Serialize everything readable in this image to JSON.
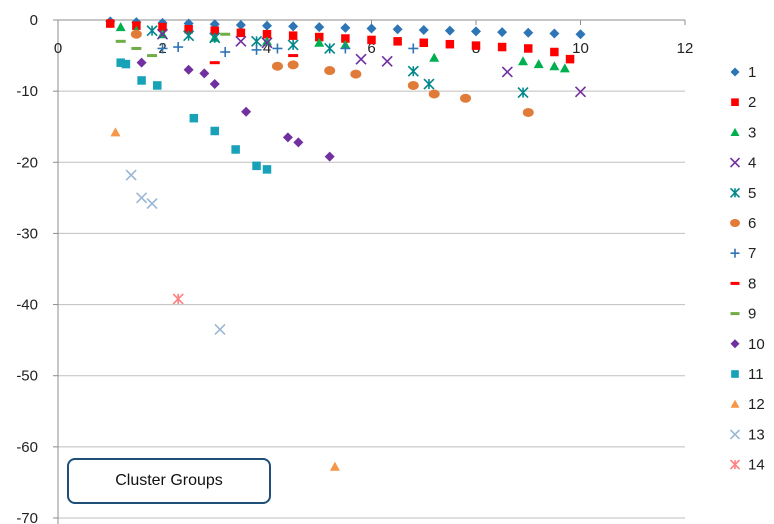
{
  "chart_data": {
    "type": "scatter",
    "title": "",
    "xlabel": "",
    "ylabel": "",
    "xlim": [
      0,
      12
    ],
    "ylim": [
      -70,
      0
    ],
    "x_ticks": [
      0,
      2,
      4,
      6,
      8,
      10,
      12
    ],
    "y_ticks": [
      0,
      -10,
      -20,
      -30,
      -40,
      -50,
      -60,
      -70
    ],
    "grid": "horizontal",
    "legend_position": "right",
    "annotation": "Cluster Groups",
    "series": [
      {
        "name": "1",
        "marker": "diamond",
        "color": "#2e75b6",
        "points": [
          [
            1.0,
            -0.2
          ],
          [
            1.5,
            -0.3
          ],
          [
            2.0,
            -0.4
          ],
          [
            2.5,
            -0.5
          ],
          [
            3.0,
            -0.6
          ],
          [
            3.5,
            -0.7
          ],
          [
            4.0,
            -0.8
          ],
          [
            4.5,
            -0.9
          ],
          [
            5.0,
            -1.0
          ],
          [
            5.5,
            -1.1
          ],
          [
            6.0,
            -1.2
          ],
          [
            6.5,
            -1.3
          ],
          [
            7.0,
            -1.4
          ],
          [
            7.5,
            -1.5
          ],
          [
            8.0,
            -1.6
          ],
          [
            8.5,
            -1.7
          ],
          [
            9.0,
            -1.8
          ],
          [
            9.5,
            -1.9
          ],
          [
            10.0,
            -2.0
          ]
        ]
      },
      {
        "name": "2",
        "marker": "square",
        "color": "#ff0000",
        "points": [
          [
            1.0,
            -0.5
          ],
          [
            1.5,
            -0.8
          ],
          [
            2.0,
            -1.0
          ],
          [
            2.5,
            -1.3
          ],
          [
            3.0,
            -1.5
          ],
          [
            3.5,
            -1.8
          ],
          [
            4.0,
            -2.0
          ],
          [
            4.5,
            -2.2
          ],
          [
            5.0,
            -2.4
          ],
          [
            5.5,
            -2.6
          ],
          [
            6.0,
            -2.8
          ],
          [
            6.5,
            -3.0
          ],
          [
            7.0,
            -3.2
          ],
          [
            7.5,
            -3.4
          ],
          [
            8.0,
            -3.6
          ],
          [
            8.5,
            -3.8
          ],
          [
            9.0,
            -4.0
          ],
          [
            9.5,
            -4.5
          ],
          [
            9.8,
            -5.5
          ]
        ]
      },
      {
        "name": "3",
        "marker": "triangle",
        "color": "#00b050",
        "points": [
          [
            1.2,
            -1.0
          ],
          [
            1.5,
            -1.5
          ],
          [
            2.0,
            -2.0
          ],
          [
            3.0,
            -2.5
          ],
          [
            4.0,
            -3.0
          ],
          [
            5.0,
            -3.2
          ],
          [
            5.5,
            -3.5
          ],
          [
            7.2,
            -5.3
          ],
          [
            8.9,
            -5.8
          ],
          [
            9.2,
            -6.2
          ],
          [
            9.5,
            -6.5
          ],
          [
            9.7,
            -6.8
          ]
        ]
      },
      {
        "name": "4",
        "marker": "x",
        "color": "#7030a0",
        "points": [
          [
            2.0,
            -2.0
          ],
          [
            3.5,
            -3.0
          ],
          [
            4.0,
            -3.2
          ],
          [
            5.8,
            -5.5
          ],
          [
            6.3,
            -5.8
          ],
          [
            8.6,
            -7.3
          ],
          [
            10.0,
            -10.1
          ]
        ]
      },
      {
        "name": "5",
        "marker": "star",
        "color": "#00868b",
        "points": [
          [
            1.8,
            -1.5
          ],
          [
            2.5,
            -2.2
          ],
          [
            3.0,
            -2.5
          ],
          [
            3.8,
            -3.0
          ],
          [
            4.5,
            -3.5
          ],
          [
            5.2,
            -4.0
          ],
          [
            6.8,
            -7.2
          ],
          [
            7.1,
            -9.0
          ],
          [
            8.9,
            -10.2
          ]
        ]
      },
      {
        "name": "6",
        "marker": "circle",
        "color": "#e07b39",
        "points": [
          [
            1.5,
            -2.0
          ],
          [
            4.2,
            -6.5
          ],
          [
            4.5,
            -6.3
          ],
          [
            5.2,
            -7.1
          ],
          [
            5.7,
            -7.6
          ],
          [
            6.8,
            -9.2
          ],
          [
            7.2,
            -10.4
          ],
          [
            7.8,
            -11.0
          ],
          [
            9.0,
            -13.0
          ]
        ]
      },
      {
        "name": "7",
        "marker": "plus",
        "color": "#2e75b6",
        "points": [
          [
            2.0,
            -4.0
          ],
          [
            2.3,
            -3.8
          ],
          [
            3.2,
            -4.5
          ],
          [
            3.8,
            -4.2
          ],
          [
            4.2,
            -4.0
          ],
          [
            5.5,
            -4.0
          ],
          [
            6.8,
            -4.0
          ]
        ]
      },
      {
        "name": "8",
        "marker": "dash",
        "color": "#ff0000",
        "points": [
          [
            3.0,
            -6.0
          ],
          [
            4.5,
            -5.0
          ]
        ]
      },
      {
        "name": "9",
        "marker": "dash",
        "color": "#70ad47",
        "points": [
          [
            1.2,
            -3.0
          ],
          [
            1.5,
            -4.0
          ],
          [
            1.8,
            -5.0
          ],
          [
            3.2,
            -2.0
          ]
        ]
      },
      {
        "name": "10",
        "marker": "diamond",
        "color": "#7030a0",
        "points": [
          [
            1.6,
            -6.0
          ],
          [
            2.5,
            -7.0
          ],
          [
            2.8,
            -7.5
          ],
          [
            3.0,
            -9.0
          ],
          [
            3.6,
            -12.9
          ],
          [
            4.4,
            -16.5
          ],
          [
            4.6,
            -17.2
          ],
          [
            5.2,
            -19.2
          ]
        ]
      },
      {
        "name": "11",
        "marker": "square",
        "color": "#17a2b8",
        "points": [
          [
            1.2,
            -6.0
          ],
          [
            1.3,
            -6.2
          ],
          [
            1.6,
            -8.5
          ],
          [
            1.9,
            -9.2
          ],
          [
            2.6,
            -13.8
          ],
          [
            3.0,
            -15.6
          ],
          [
            3.4,
            -18.2
          ],
          [
            3.8,
            -20.5
          ],
          [
            4.0,
            -21.0
          ]
        ]
      },
      {
        "name": "12",
        "marker": "triangle",
        "color": "#f79646",
        "points": [
          [
            1.1,
            -15.8
          ],
          [
            5.3,
            -62.8
          ]
        ]
      },
      {
        "name": "13",
        "marker": "x",
        "color": "#9bb7d4",
        "points": [
          [
            1.4,
            -21.8
          ],
          [
            1.6,
            -25.0
          ],
          [
            1.8,
            -25.8
          ],
          [
            3.1,
            -43.5
          ]
        ]
      },
      {
        "name": "14",
        "marker": "star",
        "color": "#ff8080",
        "points": [
          [
            2.3,
            -39.2
          ]
        ]
      }
    ]
  }
}
